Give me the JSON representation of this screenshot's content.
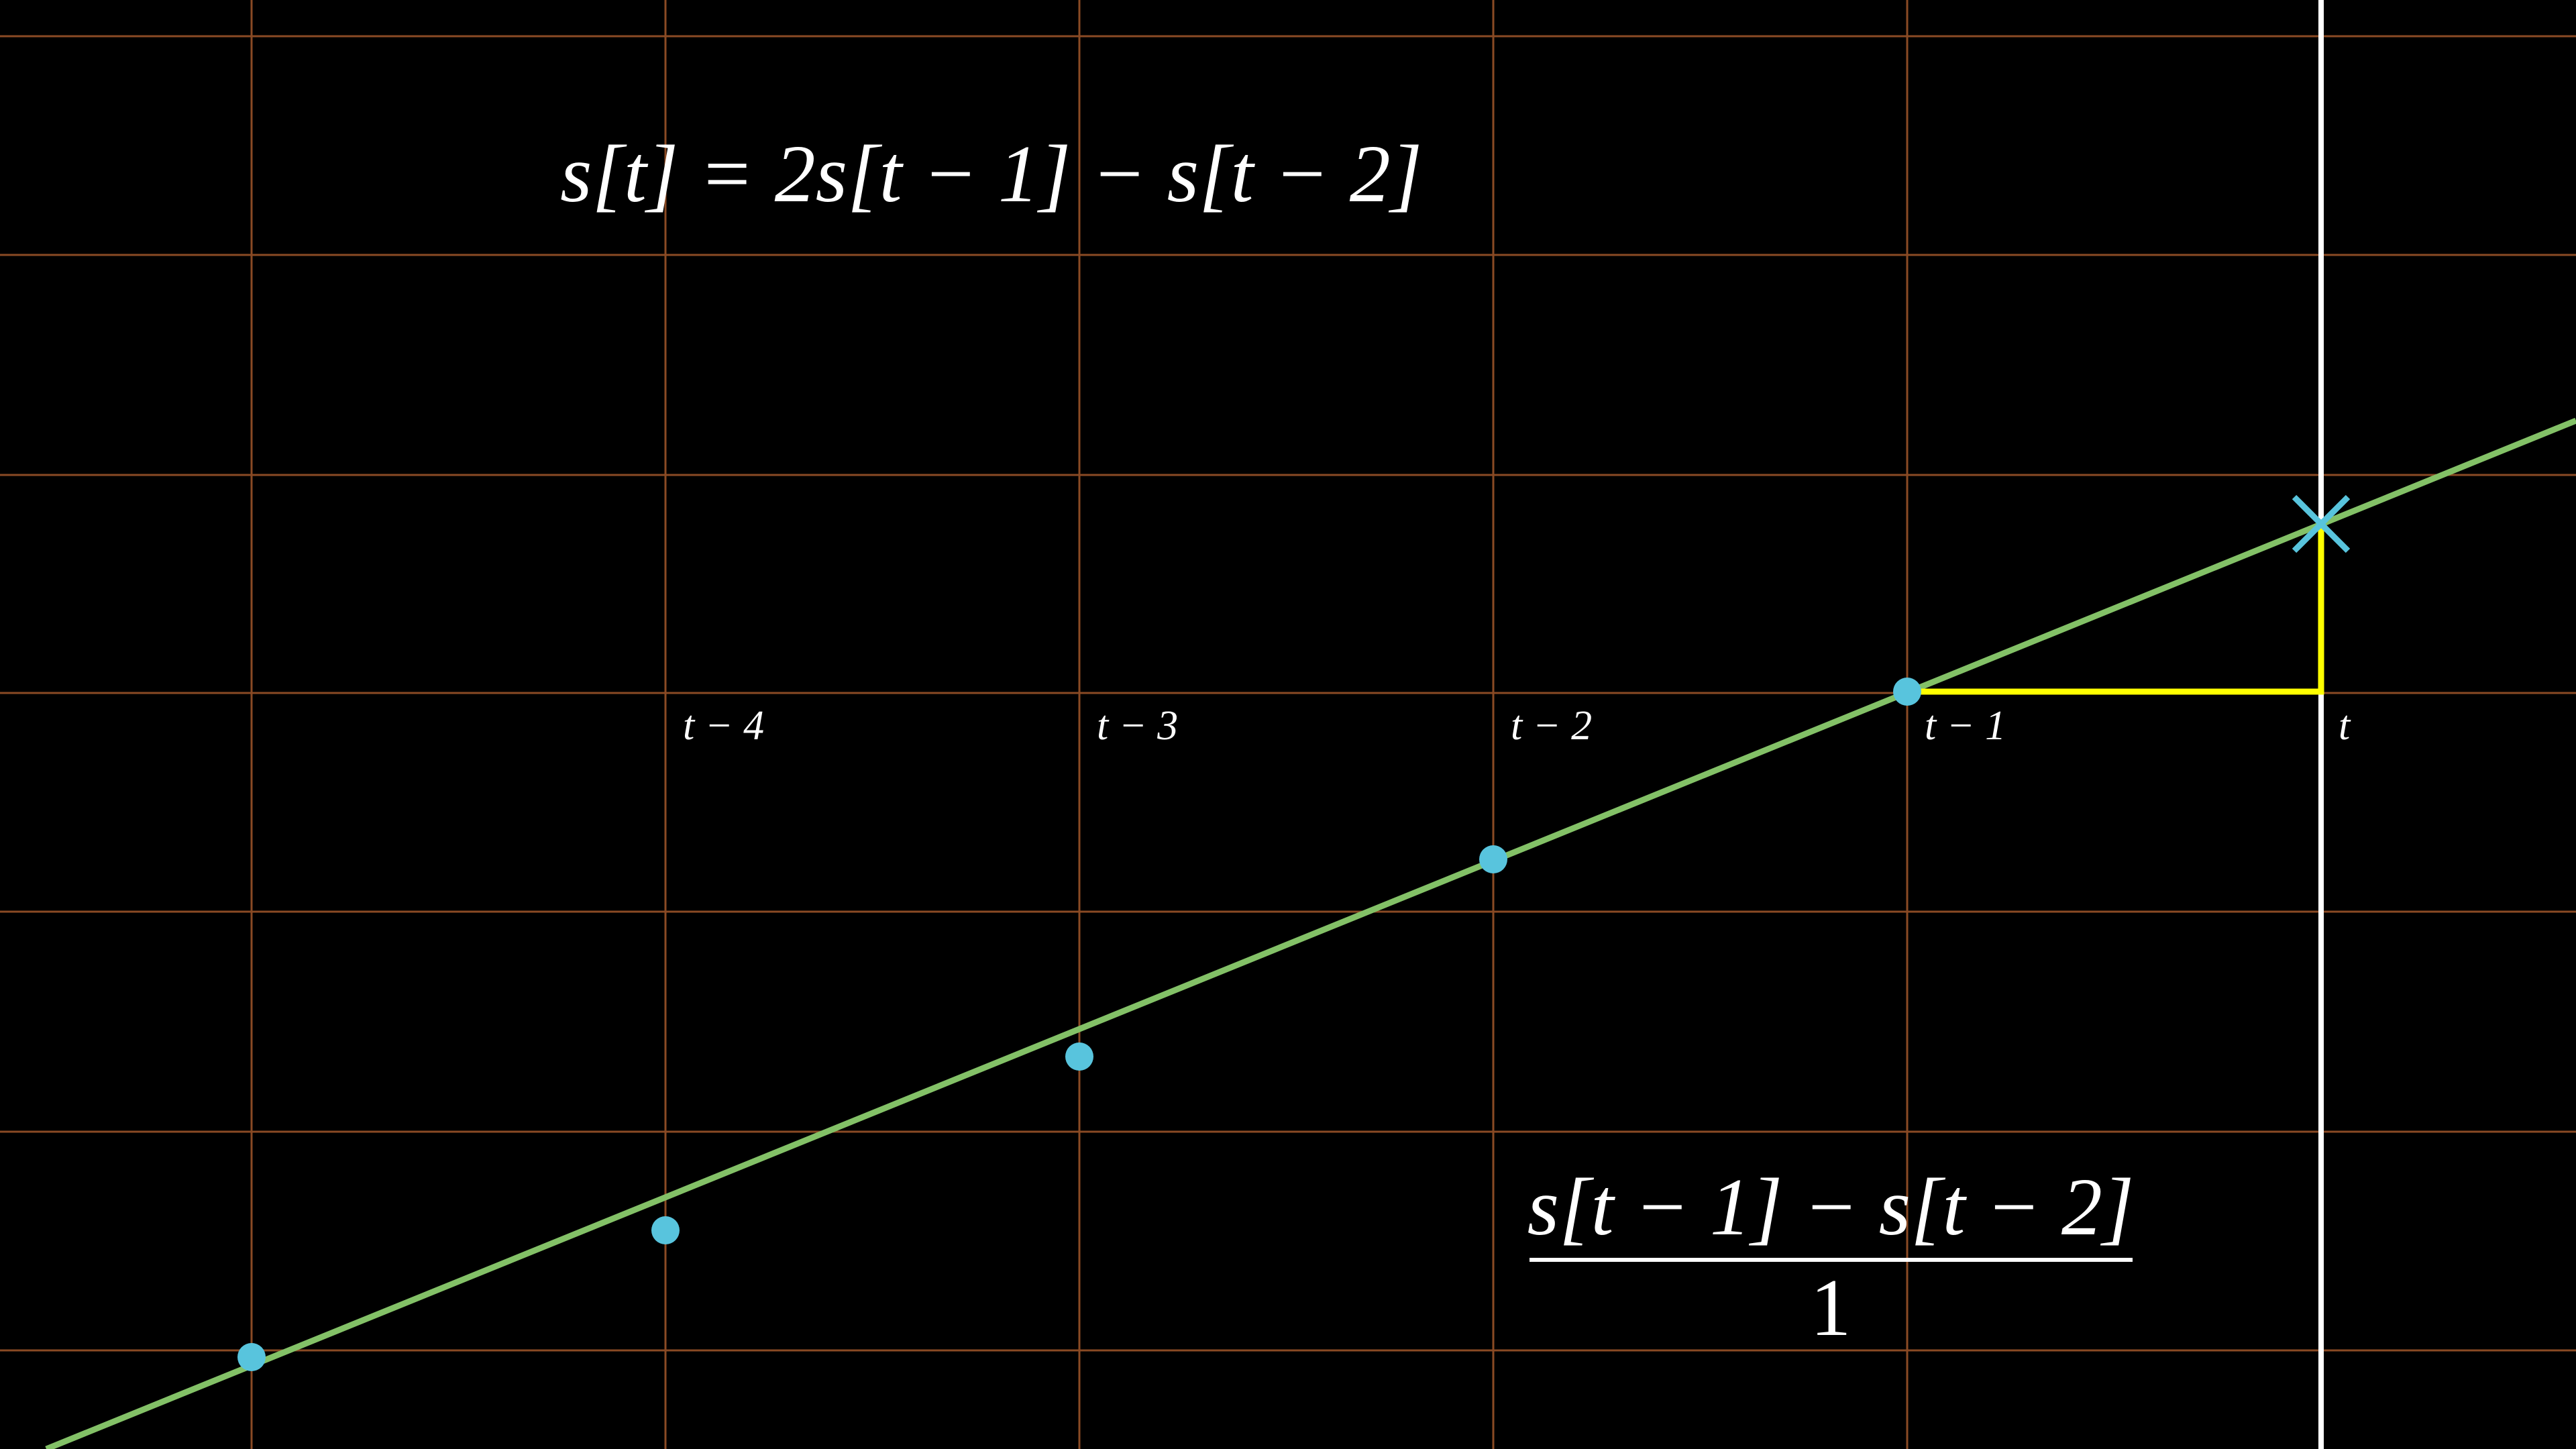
{
  "equation": "s[t] = 2s[t − 1] − s[t − 2]",
  "time_labels": [
    "t − 4",
    "t − 3",
    "t − 2",
    "t − 1",
    "t"
  ],
  "fraction": {
    "numerator": "s[t − 1] − s[t − 2]",
    "denominator": "1"
  }
}
